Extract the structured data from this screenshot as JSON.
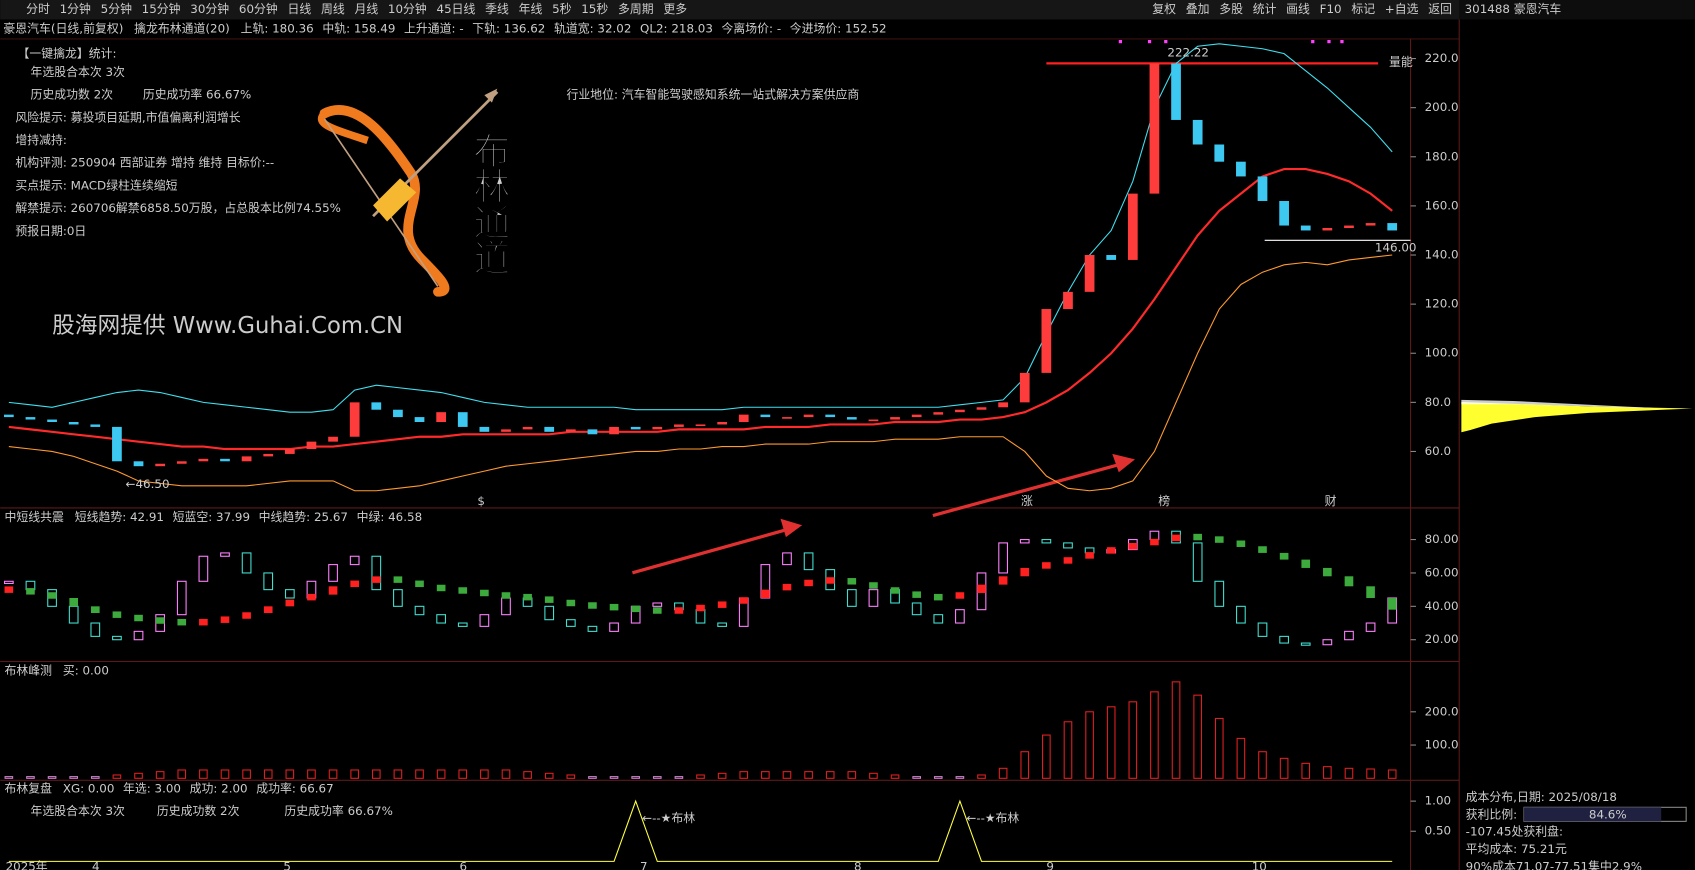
{
  "toolbar": {
    "periods": [
      "分时",
      "1分钟",
      "5分钟",
      "15分钟",
      "30分钟",
      "60分钟",
      "日线",
      "周线",
      "月线",
      "10分钟",
      "45日线",
      "季线",
      "年线",
      "5秒",
      "15秒",
      "多周期",
      "更多"
    ],
    "tools": [
      "复权",
      "叠加",
      "多股",
      "统计",
      "画线",
      "F10",
      "标记",
      "+自选",
      "返回"
    ],
    "stock": "301488 豪恩汽车"
  },
  "header": {
    "name": "豪恩汽车(日线,前复权)",
    "indicator": "擒龙布林通道(20)",
    "fields": [
      {
        "text": "上轨: 180.36",
        "color": "#3fe0f0"
      },
      {
        "text": "中轨: 158.49",
        "color": "#4ddc4d"
      },
      {
        "text": "上升通道: -",
        "color": "#ff3c3c"
      },
      {
        "text": "下轨: 136.62",
        "color": "#ff9a2e"
      },
      {
        "text": "轨道宽: 32.02",
        "color": "#ffff40"
      },
      {
        "text": "QL2: 218.03",
        "color": "#ff3c3c"
      },
      {
        "text": "今离场价: -",
        "color": "#ff3c3c"
      },
      {
        "text": "今进场价: 152.52",
        "color": "#3fe0f0"
      }
    ]
  },
  "info": {
    "lines": [
      {
        "text": "【一键擒龙】统计:",
        "color": "#ff40ff"
      },
      {
        "text": "年选股合本次 3次",
        "color": "#ffff40"
      },
      {
        "text": "历史成功数 2次",
        "color": "#ffff40"
      },
      {
        "text": "历史成功率 66.67%",
        "color": "#ffff40"
      },
      {
        "text": "风险提示: 募投项目延期,市值偏离利润增长",
        "color": "#40e040"
      },
      {
        "text": "增持减持:",
        "color": "#40e040"
      },
      {
        "text": "机构评测: 250904 西部证券 增持 维持 目标价:--",
        "color": "#40e040"
      },
      {
        "text": "买点提示: MACD绿柱连续缩短",
        "color": "#40e040"
      },
      {
        "text": "解禁提示: 260706解禁6858.50万股，占总股本比例74.55%",
        "color": "#40e040"
      },
      {
        "text": "预报日期:0日",
        "color": "#ff3c3c"
      }
    ],
    "industry": "行业地位: 汽车智能驾驶感知系统一站式解决方案供应商"
  },
  "watermark": "股海网提供 Www.Guhai.Com.CN",
  "logo": [
    "布",
    "林",
    "通",
    "道"
  ],
  "time_axis": [
    "2025年",
    "4",
    "5",
    "6",
    "7",
    "8",
    "9",
    "10"
  ],
  "flags": [
    "$",
    "涨",
    "榜",
    "财"
  ],
  "capacity_label": "量能",
  "chart_data": [
    {
      "type": "candlestick",
      "ylim": [
        37,
        228
      ],
      "yticks": [
        {
          "value": 60,
          "label": "60.0"
        },
        {
          "value": 80,
          "label": "80.0"
        },
        {
          "value": 100,
          "label": "100.0"
        },
        {
          "value": 120,
          "label": "120.0"
        },
        {
          "value": 140,
          "label": "140.0"
        },
        {
          "value": 160,
          "label": "160.0"
        },
        {
          "value": 180,
          "label": "180.0"
        },
        {
          "value": 200,
          "label": "200.0"
        },
        {
          "value": 220,
          "label": "220.0"
        }
      ],
      "open": [
        75,
        74,
        73,
        72,
        71,
        70,
        56,
        54,
        55,
        56,
        57,
        56,
        58,
        59,
        61,
        64,
        66,
        80,
        77,
        74,
        72,
        76,
        70,
        68,
        69,
        70,
        68,
        69,
        67,
        70,
        69,
        70,
        71,
        71,
        72,
        75,
        74,
        74,
        75,
        74,
        73,
        73,
        74,
        75,
        76,
        77,
        78,
        80,
        92,
        118,
        125,
        140,
        138,
        165,
        218,
        195,
        185,
        178,
        172,
        162,
        152,
        150,
        151,
        152,
        153
      ],
      "close": [
        74,
        73,
        72,
        71,
        70,
        56,
        54,
        55,
        56,
        57,
        56,
        58,
        59,
        61,
        64,
        66,
        80,
        77,
        74,
        72,
        76,
        70,
        68,
        69,
        70,
        68,
        69,
        67,
        70,
        69,
        70,
        71,
        71,
        72,
        75,
        74,
        74,
        75,
        74,
        73,
        73,
        74,
        75,
        76,
        77,
        78,
        80,
        92,
        118,
        125,
        140,
        138,
        165,
        218,
        195,
        185,
        178,
        172,
        162,
        152,
        150,
        151,
        152,
        153,
        150
      ],
      "up_color": "#ff3c3c",
      "down_color": "#3cc8f0",
      "series": [
        {
          "name": "上轨",
          "color": "#3fe0f0",
          "values": [
            80,
            79,
            78,
            80,
            82,
            84,
            85,
            84,
            82,
            80,
            79,
            78,
            77,
            76,
            76,
            77,
            85,
            87,
            86,
            85,
            84,
            82,
            80,
            79,
            78,
            78,
            78,
            78,
            78,
            77,
            77,
            77,
            77,
            77,
            78,
            78,
            78,
            78,
            78,
            78,
            78,
            78,
            78,
            78,
            79,
            80,
            81,
            90,
            108,
            125,
            140,
            150,
            170,
            200,
            218,
            225,
            226,
            225,
            224,
            222,
            215,
            208,
            200,
            192,
            182
          ]
        },
        {
          "name": "中轨",
          "color": "#ff2a2a",
          "values": [
            70,
            69,
            68,
            67,
            66,
            65,
            64,
            63,
            62,
            62,
            61,
            61,
            61,
            61,
            62,
            62,
            63,
            64,
            65,
            66,
            66,
            67,
            67,
            67,
            67,
            67,
            68,
            68,
            68,
            68,
            68,
            69,
            69,
            69,
            69,
            70,
            70,
            70,
            71,
            71,
            71,
            72,
            72,
            72,
            73,
            73,
            74,
            76,
            80,
            85,
            92,
            100,
            110,
            122,
            135,
            148,
            158,
            165,
            172,
            175,
            175,
            173,
            170,
            165,
            158
          ]
        },
        {
          "name": "下轨",
          "color": "#ff9a2e",
          "values": [
            62,
            61,
            60,
            58,
            55,
            52,
            48,
            47,
            46,
            46,
            46,
            46,
            47,
            48,
            48,
            48,
            44,
            44,
            45,
            46,
            48,
            50,
            52,
            54,
            55,
            56,
            57,
            58,
            59,
            60,
            60,
            61,
            61,
            62,
            62,
            63,
            63,
            63,
            64,
            64,
            64,
            65,
            65,
            65,
            66,
            66,
            66,
            60,
            50,
            45,
            44,
            45,
            48,
            60,
            80,
            100,
            118,
            128,
            133,
            136,
            137,
            136,
            138,
            139,
            140
          ]
        }
      ],
      "reference_line": 218.03,
      "high_label": {
        "value": 222.22,
        "label": "222.22"
      },
      "low_label": {
        "value": 46.5,
        "label": "←46.50"
      },
      "support_label": {
        "value": 146,
        "label": "146.00"
      }
    },
    {
      "type": "ribbon",
      "title": "中短线共震",
      "legend": [
        {
          "text": "短线趋势: 42.91",
          "color": "#ff80ff"
        },
        {
          "text": "短蓝空: 37.99",
          "color": "#9ad0ff"
        },
        {
          "text": "中线趋势: 25.67",
          "color": "#ff3c3c"
        },
        {
          "text": "中绿: 46.58",
          "color": "#40c040"
        }
      ],
      "ylim": [
        7,
        97
      ],
      "yticks": [
        {
          "value": 20,
          "label": "20.00"
        },
        {
          "value": 40,
          "label": "40.00"
        },
        {
          "value": 60,
          "label": "60.00"
        },
        {
          "value": 80,
          "label": "80.00"
        }
      ],
      "series": [
        {
          "name": "短线",
          "color": "#ff80ff",
          "down_color": "#40e0d0",
          "values": [
            55,
            50,
            40,
            30,
            22,
            20,
            25,
            35,
            55,
            70,
            72,
            60,
            50,
            45,
            55,
            65,
            70,
            50,
            40,
            35,
            30,
            28,
            35,
            45,
            40,
            32,
            28,
            25,
            30,
            40,
            42,
            38,
            30,
            28,
            45,
            65,
            72,
            62,
            50,
            40,
            50,
            42,
            35,
            30,
            38,
            60,
            78,
            80,
            78,
            75,
            72,
            74,
            80,
            85,
            78,
            55,
            40,
            30,
            22,
            18,
            17,
            20,
            25,
            30,
            45
          ]
        },
        {
          "name": "中线",
          "color": "#ff2020",
          "down_color": "#3caa3c",
          "values": [
            50,
            48,
            45,
            40,
            36,
            34,
            32,
            31,
            30,
            31,
            33,
            36,
            40,
            44,
            47,
            52,
            55,
            57,
            55,
            52,
            50,
            49,
            47,
            46,
            45,
            43,
            41,
            40,
            39,
            38,
            37,
            38,
            40,
            42,
            45,
            50,
            53,
            55,
            56,
            54,
            51,
            48,
            46,
            45,
            48,
            53,
            58,
            63,
            66,
            69,
            72,
            75,
            77,
            80,
            82,
            81,
            79,
            76,
            72,
            68,
            63,
            58,
            52,
            45,
            38
          ]
        }
      ]
    },
    {
      "type": "bar",
      "title": "布林峰测",
      "legend": [
        {
          "text": "买: 0.00",
          "color": "#ffff40"
        }
      ],
      "ylim": [
        -6,
        345
      ],
      "yticks": [
        {
          "value": 100,
          "label": "100.0"
        },
        {
          "value": 200,
          "label": "200.0"
        }
      ],
      "color": "#e02020",
      "values": [
        5,
        5,
        5,
        5,
        5,
        10,
        15,
        20,
        25,
        25,
        25,
        25,
        25,
        25,
        25,
        25,
        25,
        25,
        25,
        25,
        25,
        25,
        25,
        25,
        20,
        15,
        10,
        5,
        5,
        5,
        5,
        5,
        10,
        15,
        20,
        20,
        20,
        20,
        20,
        20,
        15,
        10,
        5,
        5,
        5,
        10,
        30,
        80,
        130,
        170,
        200,
        215,
        230,
        260,
        290,
        250,
        180,
        120,
        80,
        60,
        45,
        35,
        30,
        28,
        25
      ]
    },
    {
      "type": "line",
      "title": "布林复盘",
      "legend": [
        {
          "text": "XG: 0.00",
          "color": "#ffff40"
        },
        {
          "text": "年选: 3.00",
          "color": "#ffffff"
        },
        {
          "text": "成功: 2.00",
          "color": "#ffffff"
        },
        {
          "text": "成功率: 66.67",
          "color": "#ffffff"
        }
      ],
      "stats": [
        "年选股合本次 3次",
        "历史成功数 2次",
        "历史成功率 66.67%"
      ],
      "signal_label": "←--★布林",
      "color": "#ffff40",
      "ylim": [
        0,
        1.31
      ],
      "yticks": [
        {
          "value": 0.5,
          "label": "0.50"
        },
        {
          "value": 1,
          "label": "1.00"
        }
      ],
      "values": [
        0,
        0,
        0,
        0,
        0,
        0,
        0,
        0,
        0,
        0,
        0,
        0,
        0,
        0,
        0,
        0,
        0,
        0,
        0,
        0,
        0,
        0,
        0,
        0,
        0,
        0,
        0,
        0,
        0,
        1,
        0,
        0,
        0,
        0,
        0,
        0,
        0,
        0,
        0,
        0,
        0,
        0,
        0,
        0,
        1,
        0,
        0,
        0,
        0,
        0,
        0,
        0,
        0,
        0,
        0,
        0,
        0,
        0,
        0,
        0,
        0,
        0,
        0,
        0,
        0
      ]
    }
  ],
  "cost_panel": {
    "title": "成本分布,日期: 2025/08/18",
    "profit_label": "获利比例:",
    "profit_ratio": {
      "value": 84.6,
      "label": "84.6%"
    },
    "lines": [
      "-107.45处获利盘:",
      "平均成本: 75.21元",
      "90%成本71.07-77.51集中2.9%"
    ]
  }
}
